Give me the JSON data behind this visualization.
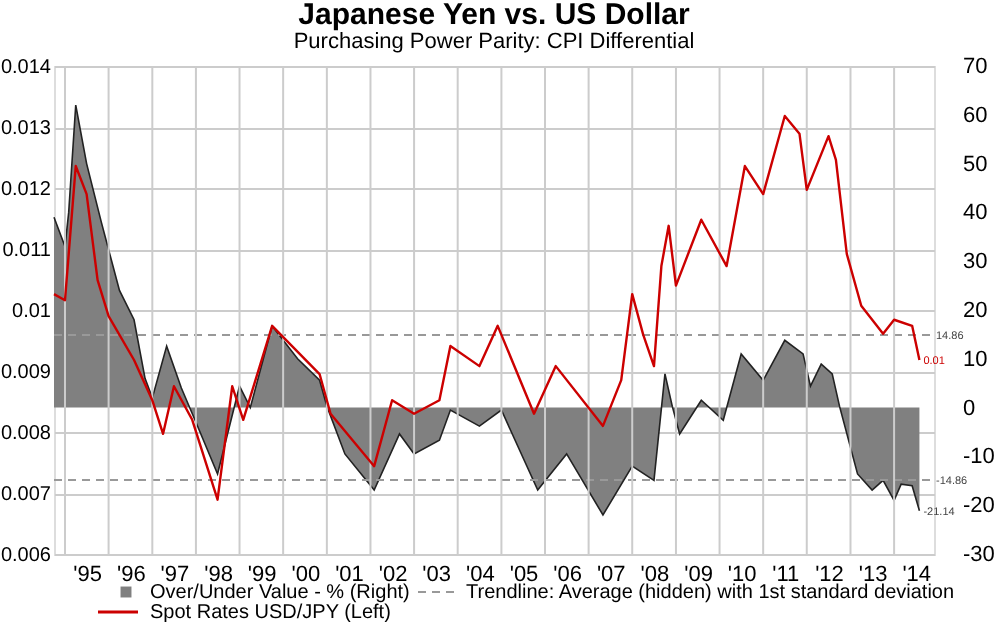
{
  "chart_data": {
    "type": "line",
    "title": "Japanese Yen vs. US Dollar",
    "subtitle": "Purchasing Power Parity: CPI Differential",
    "xlim": [
      "1994-10",
      "2014-12"
    ],
    "xticks": [
      {
        "value": "1995",
        "label": null
      },
      {
        "value": "1996",
        "label": null
      },
      {
        "value": "1997",
        "label": null
      },
      {
        "value": "1998",
        "label": null
      },
      {
        "value": "1999",
        "label": null
      },
      {
        "value": "2000",
        "label": null
      },
      {
        "value": "2001",
        "label": null
      },
      {
        "value": "2002",
        "label": null
      },
      {
        "value": "2003",
        "label": null
      },
      {
        "value": "2004",
        "label": null
      },
      {
        "value": "2005",
        "label": null
      },
      {
        "value": "2006",
        "label": null
      },
      {
        "value": "2007",
        "label": null
      },
      {
        "value": "2008",
        "label": null
      },
      {
        "value": "2009",
        "label": null
      },
      {
        "value": "2010",
        "label": null
      },
      {
        "value": "2011",
        "label": null
      },
      {
        "value": "2012",
        "label": null
      },
      {
        "value": "2013",
        "label": null
      },
      {
        "value": "2014",
        "label": null
      },
      {
        "value": "1995-07",
        "label": "'95"
      },
      {
        "value": "1996-07",
        "label": "'96"
      },
      {
        "value": "1997-07",
        "label": "'97"
      },
      {
        "value": "1998-07",
        "label": "'98"
      },
      {
        "value": "1999-07",
        "label": "'99"
      },
      {
        "value": "2000-07",
        "label": "'00"
      },
      {
        "value": "2001-07",
        "label": "'01"
      },
      {
        "value": "2002-07",
        "label": "'02"
      },
      {
        "value": "2003-07",
        "label": "'03"
      },
      {
        "value": "2004-07",
        "label": "'04"
      },
      {
        "value": "2005-07",
        "label": "'05"
      },
      {
        "value": "2006-07",
        "label": "'06"
      },
      {
        "value": "2007-07",
        "label": "'07"
      },
      {
        "value": "2008-07",
        "label": "'08"
      },
      {
        "value": "2009-07",
        "label": "'09"
      },
      {
        "value": "2010-07",
        "label": "'10"
      },
      {
        "value": "2011-07",
        "label": "'11"
      },
      {
        "value": "2012-07",
        "label": "'12"
      },
      {
        "value": "2013-07",
        "label": "'13"
      },
      {
        "value": "2014-07",
        "label": "'14"
      }
    ],
    "ylim": [
      0.006,
      0.014
    ],
    "yticks": [
      0.006,
      0.007,
      0.008,
      0.009,
      0.01,
      0.011,
      0.012,
      0.013,
      0.014
    ],
    "y2lim": [
      -30,
      70
    ],
    "y2ticks": [
      -30,
      -20,
      -10,
      0,
      10,
      20,
      30,
      40,
      50,
      60,
      70
    ],
    "grid": true,
    "legend": "bottom",
    "series": [
      {
        "name": "Over/Under Value - % (Right)",
        "type": "area",
        "axis": "y2",
        "color": "#808080",
        "x": [
          "1994-10",
          "1995-01",
          "1995-02",
          "1995-04",
          "1995-07",
          "1995-11",
          "1996-04",
          "1996-08",
          "1996-11",
          "1997-01",
          "1997-05",
          "1997-09",
          "1998-01",
          "1998-07",
          "1999-01",
          "1999-04",
          "1999-10",
          "2000-05",
          "2000-11",
          "2001-01",
          "2001-06",
          "2002-02",
          "2002-09",
          "2003-01",
          "2003-08",
          "2003-11",
          "2004-07",
          "2005-01",
          "2005-11",
          "2006-07",
          "2007-05",
          "2008-01",
          "2008-07",
          "2008-10",
          "2008-12",
          "2009-02",
          "2009-08",
          "2010-02",
          "2010-07",
          "2011-01",
          "2011-07",
          "2011-12",
          "2012-02",
          "2012-05",
          "2012-08",
          "2012-10",
          "2013-03",
          "2013-07",
          "2013-10",
          "2014-01",
          "2014-03",
          "2014-06",
          "2014-08"
        ],
        "values": [
          39,
          33,
          40,
          62,
          50,
          38,
          24,
          18,
          6,
          2,
          12.6,
          4,
          -3,
          -13.6,
          4.4,
          0,
          16.7,
          10,
          5.6,
          0.3,
          -9.5,
          -16.9,
          -5.4,
          -9.5,
          -6.7,
          -0.5,
          -3.8,
          -0.5,
          -16.9,
          -9.5,
          -22,
          -12,
          -14.9,
          6.9,
          0.3,
          -5.4,
          1.5,
          -2.6,
          11,
          5.6,
          13.8,
          11,
          4.4,
          8.9,
          6.9,
          0.3,
          -13.6,
          -16.9,
          -14.9,
          -19,
          -15.7,
          -16,
          -21.14
        ],
        "value_labels": [
          null,
          null,
          null,
          null,
          null,
          null,
          null,
          null,
          null,
          null,
          null,
          null,
          null,
          null,
          null,
          null,
          null,
          null,
          null,
          null,
          null,
          null,
          null,
          null,
          null,
          null,
          null,
          null,
          null,
          null,
          null,
          null,
          null,
          null,
          null,
          null,
          null,
          null,
          null,
          null,
          null,
          null,
          null,
          null,
          null,
          null,
          null,
          null,
          null,
          null,
          null,
          null,
          "-21.14"
        ]
      },
      {
        "name": "Spot Rates USD/JPY (Left)",
        "type": "line",
        "axis": "y",
        "color": "#cc0000",
        "x": [
          "1994-10",
          "1995-01",
          "1995-04",
          "1995-07",
          "1995-10",
          "1996-01",
          "1996-08",
          "1997-01",
          "1997-04",
          "1997-07",
          "1997-12",
          "1998-07",
          "1998-11",
          "1999-02",
          "1999-10",
          "2000-11",
          "2001-02",
          "2002-02",
          "2002-07",
          "2003-01",
          "2003-08",
          "2003-11",
          "2004-07",
          "2004-12",
          "2005-10",
          "2006-04",
          "2007-05",
          "2007-10",
          "2008-01",
          "2008-04",
          "2008-07",
          "2008-09",
          "2008-11",
          "2009-01",
          "2009-08",
          "2010-03",
          "2010-08",
          "2011-01",
          "2011-07",
          "2011-11",
          "2012-01",
          "2012-07",
          "2012-09",
          "2012-12",
          "2013-04",
          "2013-10",
          "2014-01",
          "2014-06",
          "2014-08"
        ],
        "values": [
          0.01026,
          0.01016,
          0.01236,
          0.0119,
          0.01049,
          0.0099,
          0.00918,
          0.00852,
          0.00797,
          0.00875,
          0.0082,
          0.00689,
          0.00875,
          0.0082,
          0.00974,
          0.00895,
          0.0083,
          0.00744,
          0.00852,
          0.0083,
          0.00852,
          0.00941,
          0.00908,
          0.00974,
          0.0083,
          0.00908,
          0.0081,
          0.00885,
          0.01026,
          0.0096,
          0.00908,
          0.01072,
          0.01138,
          0.0104,
          0.01148,
          0.01072,
          0.01236,
          0.0119,
          0.01318,
          0.01289,
          0.01197,
          0.01285,
          0.01246,
          0.01092,
          0.01007,
          0.00961,
          0.00984,
          0.00974,
          0.00918
        ]
      }
    ],
    "ref_lines": [
      {
        "axis": "y2",
        "value": 14.86,
        "label": "14.86",
        "color": "#999999",
        "line_style": "dashed"
      },
      {
        "axis": "y2",
        "value": -14.86,
        "label": "-14.86",
        "color": "#999999",
        "line_style": "dashed"
      }
    ],
    "annotations": [
      {
        "text": "0.01",
        "x": "2014-08",
        "y": 0.00918
      },
      "Trendline: Average (hidden) with 1st standard deviation"
    ]
  }
}
